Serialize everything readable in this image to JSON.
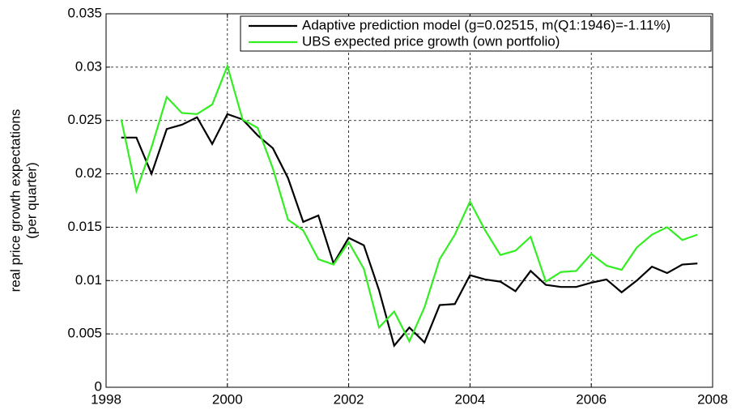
{
  "chart_data": {
    "type": "line",
    "ylabel": [
      "real price growth expectations",
      "(per quarter)"
    ],
    "x": [
      1998.25,
      1998.5,
      1998.75,
      1999,
      1999.25,
      1999.5,
      1999.75,
      2000,
      2000.25,
      2000.5,
      2000.75,
      2001,
      2001.25,
      2001.5,
      2001.75,
      2002,
      2002.25,
      2002.5,
      2002.75,
      2003,
      2003.25,
      2003.5,
      2003.75,
      2004,
      2004.25,
      2004.5,
      2004.75,
      2005,
      2005.25,
      2005.5,
      2005.75,
      2006,
      2006.25,
      2006.5,
      2006.75,
      2007,
      2007.25,
      2007.5,
      2007.75
    ],
    "series": [
      {
        "name": "Adaptive prediction model (g=0.02515, m(Q1:1946)=-1.11%)",
        "color": "#000000",
        "values": [
          0.0234,
          0.0234,
          0.02,
          0.0242,
          0.0246,
          0.0253,
          0.0228,
          0.0256,
          0.0251,
          0.0236,
          0.0224,
          0.0196,
          0.0155,
          0.0161,
          0.0116,
          0.014,
          0.0133,
          0.0091,
          0.0039,
          0.0056,
          0.0042,
          0.0077,
          0.0078,
          0.0105,
          0.0101,
          0.0099,
          0.009,
          0.0109,
          0.0096,
          0.0094,
          0.0094,
          0.0098,
          0.0101,
          0.0089,
          0.01,
          0.0113,
          0.0107,
          0.0115,
          0.0116
        ]
      },
      {
        "name": "UBS expected price growth (own portfolio)",
        "color": "#33ee22",
        "values": [
          0.0251,
          0.0184,
          0.0225,
          0.0272,
          0.0257,
          0.0256,
          0.0265,
          0.0301,
          0.0251,
          0.0243,
          0.0205,
          0.0157,
          0.0147,
          0.012,
          0.0115,
          0.0136,
          0.0111,
          0.0056,
          0.0071,
          0.0043,
          0.0075,
          0.012,
          0.0143,
          0.0174,
          0.0147,
          0.0124,
          0.0128,
          0.0141,
          0.0099,
          0.0108,
          0.0109,
          0.0125,
          0.0114,
          0.011,
          0.0131,
          0.0143,
          0.015,
          0.0138,
          0.0143
        ]
      }
    ],
    "xlim": [
      1998,
      2008
    ],
    "xticks": [
      1998,
      2000,
      2002,
      2004,
      2006,
      2008
    ],
    "ylim": [
      0,
      0.035
    ],
    "yticks": [
      0,
      0.005,
      0.01,
      0.015,
      0.02,
      0.025,
      0.03,
      0.035
    ],
    "grid": true,
    "legend": "upper right"
  }
}
